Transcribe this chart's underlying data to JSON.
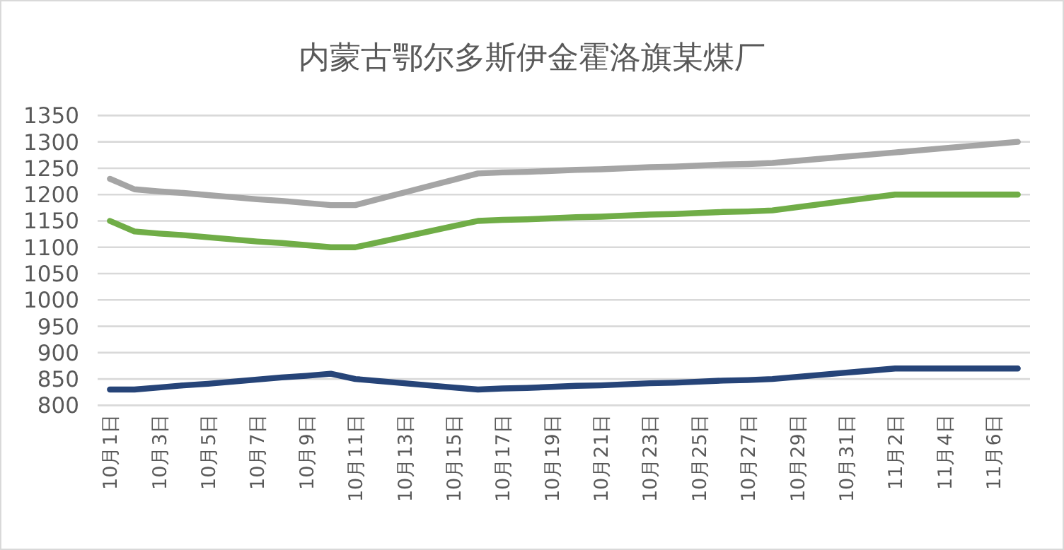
{
  "chart_data": {
    "type": "line",
    "title": "内蒙古鄂尔多斯伊金霍洛旗某煤厂",
    "categories": [
      "10月1日",
      null,
      "10月3日",
      null,
      "10月5日",
      null,
      "10月7日",
      null,
      "10月9日",
      null,
      "10月11日",
      null,
      "10月13日",
      null,
      "10月15日",
      null,
      "10月17日",
      null,
      "10月19日",
      null,
      "10月21日",
      null,
      "10月23日",
      null,
      "10月25日",
      null,
      "10月27日",
      null,
      "10月29日",
      null,
      "10月31日",
      null,
      "11月2日",
      null,
      "11月4日",
      null,
      "11月6日",
      null
    ],
    "series": [
      {
        "color": "#a5a5a5",
        "values": [
          1230,
          1210,
          1206,
          1203,
          1199,
          1195,
          1191,
          1188,
          1184,
          1180,
          1180,
          1192,
          1204,
          1216,
          1228,
          1240,
          1242,
          1243,
          1245,
          1247,
          1248,
          1250,
          1252,
          1253,
          1255,
          1257,
          1258,
          1260,
          1264,
          1268,
          1272,
          1276,
          1280,
          1284,
          1288,
          1292,
          1296,
          1300
        ]
      },
      {
        "color": "#70ad47",
        "values": [
          1150,
          1130,
          1126,
          1123,
          1119,
          1115,
          1111,
          1108,
          1104,
          1100,
          1100,
          1110,
          1120,
          1130,
          1140,
          1150,
          1152,
          1153,
          1155,
          1157,
          1158,
          1160,
          1162,
          1163,
          1165,
          1167,
          1168,
          1170,
          1176,
          1182,
          1188,
          1194,
          1200,
          1200,
          1200,
          1200,
          1200,
          1200
        ]
      },
      {
        "color": "#264478",
        "values": [
          830,
          830,
          834,
          838,
          841,
          845,
          849,
          853,
          856,
          860,
          850,
          846,
          842,
          838,
          834,
          830,
          832,
          833,
          835,
          837,
          838,
          840,
          842,
          843,
          845,
          847,
          848,
          850,
          854,
          858,
          862,
          866,
          870,
          870,
          870,
          870,
          870,
          870
        ]
      }
    ],
    "ylim": [
      800,
      1350
    ],
    "yticks": [
      800,
      850,
      900,
      950,
      1000,
      1050,
      1100,
      1150,
      1200,
      1250,
      1300,
      1350
    ],
    "grid": "y",
    "marker": "none",
    "line_style": "solid"
  }
}
